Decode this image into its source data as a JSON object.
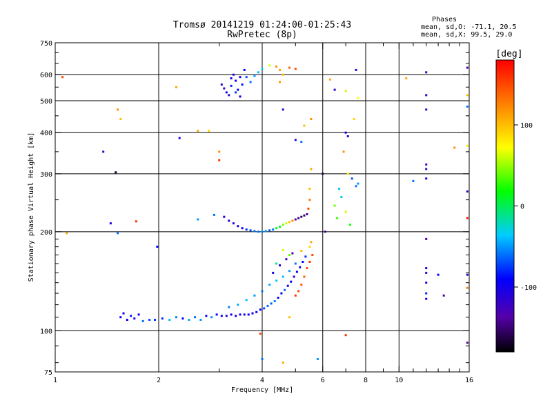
{
  "chart_data": {
    "type": "scatter",
    "title": "Tromsø 20141219 01:24:00-01:25:43",
    "subtitle": "RwPretec (8p)",
    "xlabel": "Frequency [MHz]",
    "ylabel": "Stationary phase Virtual Height [km]",
    "x_scale": "log",
    "y_scale": "log",
    "xlim": [
      1,
      16
    ],
    "ylim": [
      75,
      750
    ],
    "x_ticks": [
      1,
      2,
      4,
      6,
      8,
      10,
      16
    ],
    "x_minor_ticks": [
      3,
      5,
      7,
      9,
      11,
      12,
      13,
      14,
      15
    ],
    "y_ticks": [
      75,
      100,
      200,
      300,
      400,
      500,
      600,
      750
    ],
    "y_minor_ticks": [
      80,
      90,
      110,
      120,
      130,
      140,
      150,
      160,
      170,
      180,
      190,
      250,
      350,
      450,
      550,
      650,
      700
    ],
    "x_gridlines": [
      2,
      4,
      6,
      8,
      10
    ],
    "y_gridlines": [
      100,
      200,
      300,
      400,
      500,
      600
    ],
    "phases_header": "Phases",
    "stats": [
      "mean, sd,O: -71.1, 20.5",
      "mean, sd,X:  99.5, 29.0"
    ],
    "colorbar": {
      "label": "[deg]",
      "range": [
        -180,
        180
      ],
      "ticks": [
        100,
        0,
        -100
      ],
      "palette": "rainbow"
    },
    "points": [
      [
        1.55,
        110,
        -90
      ],
      [
        1.58,
        113,
        -100
      ],
      [
        1.62,
        108,
        -95
      ],
      [
        1.66,
        111,
        -85
      ],
      [
        1.7,
        109,
        -100
      ],
      [
        1.75,
        112,
        -90
      ],
      [
        1.8,
        107,
        -60
      ],
      [
        1.88,
        108,
        -70
      ],
      [
        1.95,
        108,
        -75
      ],
      [
        2.05,
        109,
        -80
      ],
      [
        2.15,
        108,
        -40
      ],
      [
        2.25,
        110,
        -55
      ],
      [
        2.35,
        109,
        -90
      ],
      [
        2.45,
        108,
        -45
      ],
      [
        2.55,
        110,
        -60
      ],
      [
        2.65,
        108,
        -50
      ],
      [
        2.75,
        111,
        -95
      ],
      [
        2.85,
        110,
        -50
      ],
      [
        2.95,
        112,
        -100
      ],
      [
        3.05,
        111,
        -95
      ],
      [
        3.15,
        111,
        -110
      ],
      [
        3.25,
        112,
        -100
      ],
      [
        3.35,
        111,
        -105
      ],
      [
        3.45,
        112,
        -95
      ],
      [
        3.55,
        112,
        -110
      ],
      [
        3.65,
        112,
        -90
      ],
      [
        3.75,
        113,
        -100
      ],
      [
        3.85,
        114,
        -95
      ],
      [
        3.95,
        116,
        -90
      ],
      [
        4.05,
        117,
        -70
      ],
      [
        4.15,
        119,
        -60
      ],
      [
        4.25,
        121,
        -65
      ],
      [
        4.35,
        123,
        -55
      ],
      [
        4.45,
        126,
        -85
      ],
      [
        4.55,
        130,
        -95
      ],
      [
        4.65,
        133,
        -60
      ],
      [
        4.75,
        137,
        -100
      ],
      [
        4.85,
        141,
        -90
      ],
      [
        4.95,
        146,
        -110
      ],
      [
        5.05,
        151,
        -100
      ],
      [
        5.15,
        156,
        -105
      ],
      [
        5.25,
        162,
        -90
      ],
      [
        5.35,
        168,
        -80
      ],
      [
        3.2,
        118,
        -55
      ],
      [
        3.4,
        120,
        -45
      ],
      [
        3.6,
        124,
        -40
      ],
      [
        3.8,
        128,
        -50
      ],
      [
        4.0,
        132,
        -60
      ],
      [
        4.2,
        138,
        -45
      ],
      [
        4.4,
        142,
        -30
      ],
      [
        4.6,
        146,
        -40
      ],
      [
        4.8,
        152,
        -50
      ],
      [
        5.0,
        160,
        -60
      ],
      [
        4.3,
        150,
        -100
      ],
      [
        4.5,
        158,
        -110
      ],
      [
        4.7,
        165,
        -120
      ],
      [
        4.9,
        172,
        -130
      ],
      [
        5.0,
        128,
        160
      ],
      [
        5.1,
        132,
        150
      ],
      [
        5.2,
        138,
        145
      ],
      [
        5.3,
        146,
        140
      ],
      [
        5.4,
        155,
        150
      ],
      [
        5.5,
        162,
        160
      ],
      [
        5.6,
        170,
        150
      ],
      [
        5.5,
        180,
        90
      ],
      [
        5.55,
        186,
        110
      ],
      [
        4.8,
        170,
        40
      ],
      [
        4.6,
        176,
        60
      ],
      [
        5.2,
        175,
        100
      ],
      [
        4.4,
        160,
        -10
      ],
      [
        3.1,
        222,
        -100
      ],
      [
        3.2,
        216,
        -105
      ],
      [
        3.3,
        212,
        -110
      ],
      [
        3.4,
        208,
        -100
      ],
      [
        3.5,
        205,
        -95
      ],
      [
        3.6,
        203,
        -80
      ],
      [
        3.7,
        202,
        -70
      ],
      [
        3.8,
        201,
        -60
      ],
      [
        3.9,
        200,
        -60
      ],
      [
        4.0,
        200,
        -55
      ],
      [
        4.1,
        201,
        -50
      ],
      [
        4.2,
        202,
        -65
      ],
      [
        4.3,
        203,
        -60
      ],
      [
        4.4,
        205,
        20
      ],
      [
        4.5,
        207,
        10
      ],
      [
        4.6,
        210,
        40
      ],
      [
        4.7,
        212,
        60
      ],
      [
        4.8,
        214,
        100
      ],
      [
        4.9,
        216,
        120
      ],
      [
        5.0,
        218,
        -140
      ],
      [
        5.1,
        220,
        -150
      ],
      [
        5.2,
        222,
        -155
      ],
      [
        5.3,
        224,
        -150
      ],
      [
        5.4,
        226,
        -140
      ],
      [
        5.45,
        235,
        150
      ],
      [
        5.5,
        250,
        130
      ],
      [
        5.5,
        270,
        100
      ],
      [
        5.55,
        310,
        110
      ],
      [
        2.6,
        218,
        -50
      ],
      [
        2.9,
        225,
        -60
      ],
      [
        3.05,
        560,
        -110
      ],
      [
        3.1,
        545,
        -120
      ],
      [
        3.15,
        530,
        -100
      ],
      [
        3.2,
        520,
        -115
      ],
      [
        3.25,
        585,
        -105
      ],
      [
        3.3,
        600,
        -110
      ],
      [
        3.35,
        575,
        -100
      ],
      [
        3.4,
        540,
        -90
      ],
      [
        3.45,
        515,
        -95
      ],
      [
        3.5,
        560,
        -85
      ],
      [
        3.55,
        620,
        -90
      ],
      [
        3.6,
        590,
        -70
      ],
      [
        3.25,
        555,
        -80
      ],
      [
        3.35,
        530,
        -75
      ],
      [
        3.45,
        590,
        -95
      ],
      [
        3.7,
        570,
        -60
      ],
      [
        3.8,
        595,
        -50
      ],
      [
        3.9,
        610,
        -40
      ],
      [
        4.0,
        625,
        -30
      ],
      [
        4.2,
        640,
        60
      ],
      [
        4.4,
        635,
        120
      ],
      [
        4.5,
        620,
        110
      ],
      [
        4.6,
        600,
        100
      ],
      [
        4.5,
        570,
        115
      ],
      [
        4.8,
        630,
        140
      ],
      [
        5.0,
        625,
        150
      ],
      [
        6.7,
        270,
        -40
      ],
      [
        6.8,
        255,
        -30
      ],
      [
        6.5,
        240,
        40
      ],
      [
        6.6,
        220,
        30
      ],
      [
        7.0,
        230,
        60
      ],
      [
        7.2,
        210,
        20
      ],
      [
        7.5,
        275,
        -60
      ],
      [
        7.6,
        280,
        -50
      ],
      [
        7.3,
        290,
        -70
      ],
      [
        7.1,
        300,
        80
      ],
      [
        6.9,
        350,
        120
      ],
      [
        7.0,
        400,
        -100
      ],
      [
        7.1,
        390,
        -110
      ],
      [
        7.4,
        440,
        90
      ],
      [
        7.5,
        620,
        -120
      ],
      [
        7.6,
        510,
        70
      ],
      [
        6.5,
        540,
        -120
      ],
      [
        7.0,
        535,
        60
      ],
      [
        6.3,
        580,
        110
      ],
      [
        12.0,
        610,
        -120
      ],
      [
        12.0,
        520,
        -110
      ],
      [
        12.0,
        470,
        -120
      ],
      [
        12.0,
        320,
        -130
      ],
      [
        12.0,
        310,
        -120
      ],
      [
        12.0,
        290,
        -100
      ],
      [
        12.0,
        190,
        -140
      ],
      [
        12.0,
        155,
        -110
      ],
      [
        12.0,
        150,
        -120
      ],
      [
        12.0,
        140,
        -100
      ],
      [
        12.0,
        130,
        -80
      ],
      [
        12.0,
        125,
        -100
      ],
      [
        15.8,
        630,
        -130
      ],
      [
        15.8,
        520,
        100
      ],
      [
        15.8,
        480,
        -60
      ],
      [
        15.8,
        365,
        80
      ],
      [
        15.8,
        265,
        -120
      ],
      [
        15.8,
        220,
        170
      ],
      [
        15.8,
        148,
        -120
      ],
      [
        15.8,
        135,
        130
      ],
      [
        15.8,
        92,
        -140
      ],
      [
        13.0,
        148,
        -90
      ],
      [
        13.5,
        128,
        -140
      ],
      [
        10.5,
        585,
        110
      ],
      [
        11.0,
        285,
        -60
      ],
      [
        14.5,
        360,
        120
      ],
      [
        1.05,
        590,
        150
      ],
      [
        1.08,
        198,
        110
      ],
      [
        1.38,
        350,
        -120
      ],
      [
        1.5,
        303,
        -170
      ],
      [
        1.52,
        470,
        120
      ],
      [
        1.55,
        440,
        100
      ],
      [
        1.45,
        212,
        -100
      ],
      [
        1.52,
        198,
        -60
      ],
      [
        1.72,
        215,
        160
      ],
      [
        1.98,
        180,
        -90
      ],
      [
        2.25,
        550,
        110
      ],
      [
        2.3,
        385,
        -100
      ],
      [
        2.6,
        405,
        110
      ],
      [
        2.8,
        405,
        90
      ],
      [
        3.0,
        350,
        120
      ],
      [
        3.0,
        330,
        160
      ],
      [
        5.0,
        380,
        -110
      ],
      [
        5.2,
        375,
        -60
      ],
      [
        5.3,
        420,
        100
      ],
      [
        5.55,
        440,
        120
      ],
      [
        4.6,
        470,
        -120
      ],
      [
        4.8,
        110,
        100
      ],
      [
        3.95,
        98,
        150
      ],
      [
        4.0,
        82,
        -60
      ],
      [
        4.6,
        80,
        110
      ],
      [
        5.8,
        82,
        -50
      ],
      [
        7.0,
        97,
        160
      ],
      [
        6.1,
        200,
        -140
      ],
      [
        6.0,
        300,
        -160
      ]
    ]
  }
}
